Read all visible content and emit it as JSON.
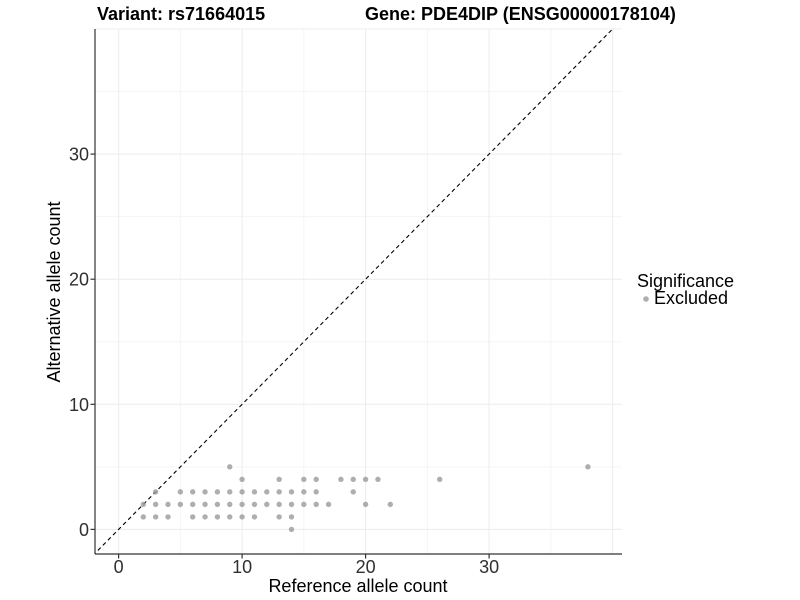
{
  "header": {
    "variant_title": "Variant: rs71664015",
    "gene_title": "Gene: PDE4DIP (ENSG00000178104)"
  },
  "chart_data": {
    "type": "scatter",
    "title": "Variant: rs71664015 | Gene: PDE4DIP (ENSG00000178104)",
    "xlabel": "Reference allele count",
    "ylabel": "Alternative allele count",
    "xlim": [
      -2,
      41
    ],
    "ylim": [
      -2,
      40
    ],
    "x_ticks": [
      0,
      10,
      20,
      30
    ],
    "y_ticks": [
      0,
      10,
      20,
      30
    ],
    "grid_major": [
      0,
      10,
      20,
      30,
      40
    ],
    "grid_minor": [
      5,
      15,
      25,
      35
    ],
    "grid": true,
    "reference_line": {
      "style": "dashed",
      "equation": "y = x",
      "color": "#000000"
    },
    "legend": {
      "title": "Significance",
      "position": "right",
      "items": [
        {
          "label": "Excluded",
          "color": "#9a9a9a"
        }
      ]
    },
    "series": [
      {
        "name": "Excluded",
        "color": "#9a9a9a",
        "points": [
          [
            14,
            0
          ],
          [
            2,
            1
          ],
          [
            3,
            1
          ],
          [
            4,
            1
          ],
          [
            6,
            1
          ],
          [
            7,
            1
          ],
          [
            8,
            1
          ],
          [
            9,
            1
          ],
          [
            10,
            1
          ],
          [
            11,
            1
          ],
          [
            13,
            1
          ],
          [
            14,
            1
          ],
          [
            2,
            2
          ],
          [
            3,
            2
          ],
          [
            4,
            2
          ],
          [
            5,
            2
          ],
          [
            6,
            2
          ],
          [
            7,
            2
          ],
          [
            8,
            2
          ],
          [
            9,
            2
          ],
          [
            10,
            2
          ],
          [
            11,
            2
          ],
          [
            12,
            2
          ],
          [
            13,
            2
          ],
          [
            14,
            2
          ],
          [
            15,
            2
          ],
          [
            16,
            2
          ],
          [
            17,
            2
          ],
          [
            20,
            2
          ],
          [
            22,
            2
          ],
          [
            3,
            3
          ],
          [
            5,
            3
          ],
          [
            6,
            3
          ],
          [
            7,
            3
          ],
          [
            8,
            3
          ],
          [
            9,
            3
          ],
          [
            10,
            3
          ],
          [
            11,
            3
          ],
          [
            12,
            3
          ],
          [
            13,
            3
          ],
          [
            14,
            3
          ],
          [
            15,
            3
          ],
          [
            16,
            3
          ],
          [
            19,
            3
          ],
          [
            10,
            4
          ],
          [
            13,
            4
          ],
          [
            15,
            4
          ],
          [
            16,
            4
          ],
          [
            18,
            4
          ],
          [
            19,
            4
          ],
          [
            20,
            4
          ],
          [
            21,
            4
          ],
          [
            26,
            4
          ],
          [
            9,
            5
          ],
          [
            38,
            5
          ]
        ]
      }
    ]
  }
}
